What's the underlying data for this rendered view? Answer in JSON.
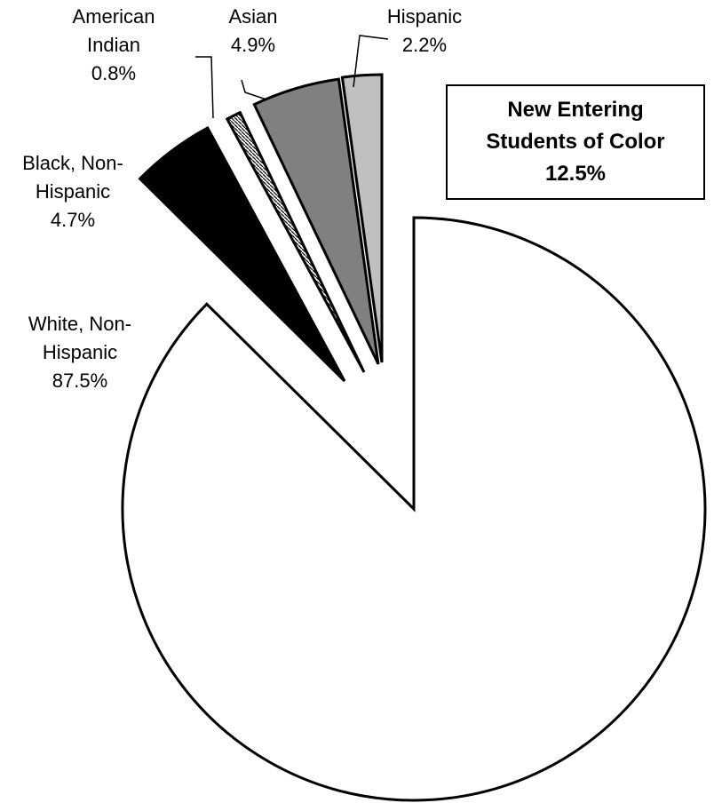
{
  "chart_data": {
    "type": "pie",
    "exploded": true,
    "slices": [
      {
        "label": "White, Non-\nHispanic",
        "value": 87.5,
        "value_label": "87.5%",
        "fill": "#ffffff",
        "pattern": "none"
      },
      {
        "label": "Black, Non-\nHispanic",
        "value": 4.7,
        "value_label": "4.7%",
        "fill": "#000000",
        "pattern": "none"
      },
      {
        "label": "American\nIndian",
        "value": 0.8,
        "value_label": "0.8%",
        "fill": "#ffffff",
        "pattern": "hatched"
      },
      {
        "label": "Asian",
        "value": 4.9,
        "value_label": "4.9%",
        "fill": "#808080",
        "pattern": "none"
      },
      {
        "label": "Hispanic",
        "value": 2.2,
        "value_label": "2.2%",
        "fill": "#c0c0c0",
        "pattern": "none"
      }
    ],
    "annotation": {
      "text": "New Entering\nStudents of Color\n12.5%"
    },
    "legend": "none"
  }
}
